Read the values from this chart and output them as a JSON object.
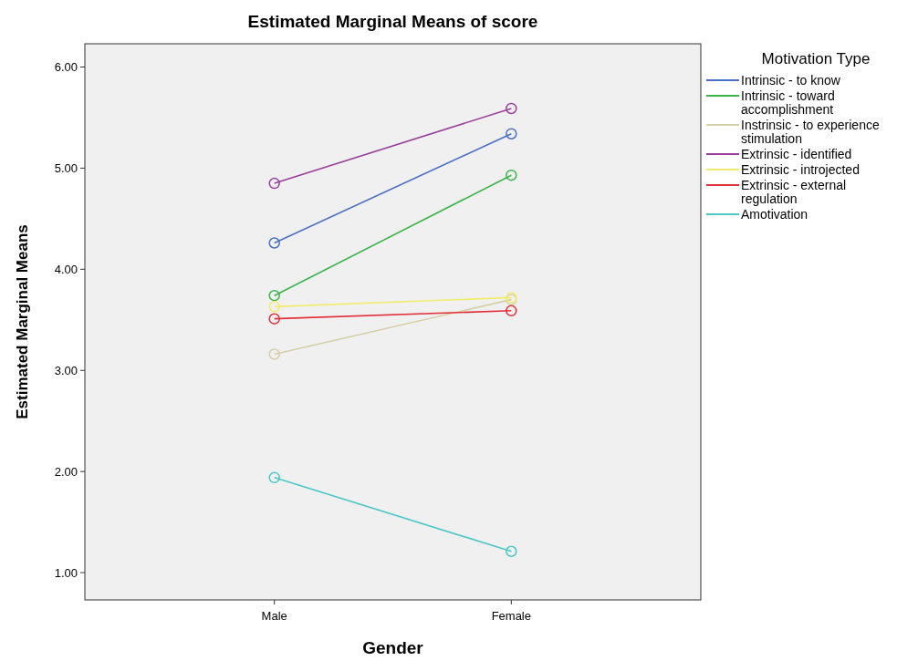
{
  "chart_data": {
    "type": "line",
    "title": "Estimated Marginal Means of score",
    "xlabel": "Gender",
    "ylabel": "Estimated Marginal Means",
    "legend_title": "Motivation Type",
    "categories": [
      "Male",
      "Female"
    ],
    "ylim": [
      0.73,
      6.23
    ],
    "yticks": [
      {
        "value": 1,
        "label": "1.00"
      },
      {
        "value": 2,
        "label": "2.00"
      },
      {
        "value": 3,
        "label": "3.00"
      },
      {
        "value": 4,
        "label": "4.00"
      },
      {
        "value": 5,
        "label": "5.00"
      },
      {
        "value": 6,
        "label": "6.00"
      }
    ],
    "grid": false,
    "legend": "right",
    "marker": "circle",
    "line_style": "solid",
    "series": [
      {
        "name": "Intrinsic - to know",
        "color": "#4a6fc3",
        "values": [
          4.26,
          5.34
        ]
      },
      {
        "name": "Intrinsic - toward accomplishment",
        "color": "#3cb44a",
        "values": [
          3.74,
          4.93
        ]
      },
      {
        "name": "Instrinsic - to experience stimulation",
        "color": "#d6d0a6",
        "values": [
          3.16,
          3.7
        ]
      },
      {
        "name": "Extrinsic - identified",
        "color": "#9b3f9b",
        "values": [
          4.85,
          5.59
        ]
      },
      {
        "name": "Extrinsic - introjected",
        "color": "#f2ec6e",
        "values": [
          3.63,
          3.72
        ]
      },
      {
        "name": "Extrinsic - external regulation",
        "color": "#e0303a",
        "values": [
          3.51,
          3.59
        ]
      },
      {
        "name": "Amotivation",
        "color": "#4cc7c7",
        "values": [
          1.94,
          1.21
        ]
      }
    ]
  }
}
